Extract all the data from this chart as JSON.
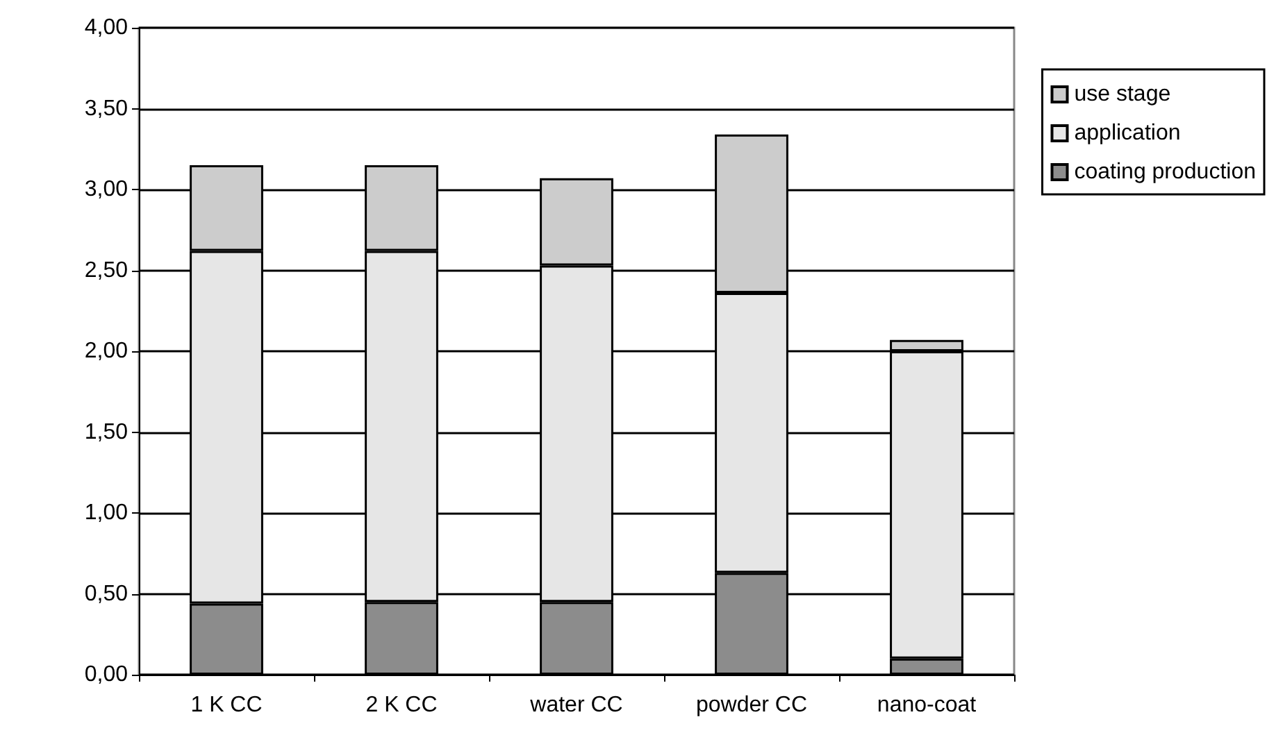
{
  "chart_data": {
    "type": "bar",
    "stacked": true,
    "categories": [
      "1 K CC",
      "2 K CC",
      "water CC",
      "powder CC",
      "nano-coat"
    ],
    "series": [
      {
        "name": "coating production",
        "color": "#8c8c8c",
        "values": [
          0.44,
          0.45,
          0.45,
          0.63,
          0.1
        ]
      },
      {
        "name": "application",
        "color": "#e6e6e6",
        "values": [
          2.18,
          2.17,
          2.08,
          1.73,
          1.9
        ]
      },
      {
        "name": "use stage",
        "color": "#cccccc",
        "values": [
          0.53,
          0.53,
          0.54,
          0.98,
          0.07
        ]
      }
    ],
    "ylim": [
      0,
      4
    ],
    "yticks": [
      {
        "value": 0,
        "label": "0,00"
      },
      {
        "value": 0.5,
        "label": "0,50"
      },
      {
        "value": 1,
        "label": "1,00"
      },
      {
        "value": 1.5,
        "label": "1,50"
      },
      {
        "value": 2,
        "label": "2,00"
      },
      {
        "value": 2.5,
        "label": "2,50"
      },
      {
        "value": 3,
        "label": "3,00"
      },
      {
        "value": 3.5,
        "label": "3,50"
      },
      {
        "value": 4,
        "label": "4,00"
      }
    ],
    "grid": "y",
    "legend": "top right"
  }
}
